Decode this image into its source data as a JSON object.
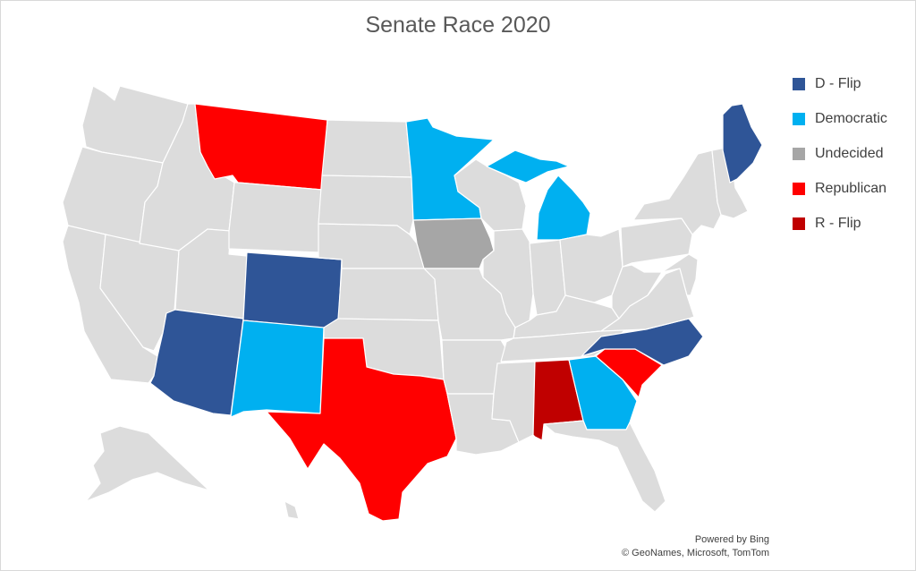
{
  "title": "Senate Race 2020",
  "legend": [
    {
      "label": "D - Flip",
      "color": "#2f5597"
    },
    {
      "label": "Democratic",
      "color": "#00b0f0"
    },
    {
      "label": "Undecided",
      "color": "#a6a6a6"
    },
    {
      "label": "Republican",
      "color": "#ff0000"
    },
    {
      "label": "R - Flip",
      "color": "#c00000"
    }
  ],
  "base_color": "#dcdcdc",
  "states": [
    {
      "name": "Washington",
      "category": "none"
    },
    {
      "name": "Oregon",
      "category": "none"
    },
    {
      "name": "California",
      "category": "none"
    },
    {
      "name": "Nevada",
      "category": "none"
    },
    {
      "name": "Idaho",
      "category": "none"
    },
    {
      "name": "Utah",
      "category": "none"
    },
    {
      "name": "Arizona",
      "category": "D - Flip"
    },
    {
      "name": "Montana",
      "category": "Republican"
    },
    {
      "name": "Wyoming",
      "category": "none"
    },
    {
      "name": "Colorado",
      "category": "D - Flip"
    },
    {
      "name": "New Mexico",
      "category": "Democratic"
    },
    {
      "name": "North Dakota",
      "category": "none"
    },
    {
      "name": "South Dakota",
      "category": "none"
    },
    {
      "name": "Nebraska",
      "category": "none"
    },
    {
      "name": "Kansas",
      "category": "none"
    },
    {
      "name": "Oklahoma",
      "category": "none"
    },
    {
      "name": "Texas",
      "category": "Republican"
    },
    {
      "name": "Minnesota",
      "category": "Democratic"
    },
    {
      "name": "Iowa",
      "category": "Undecided"
    },
    {
      "name": "Missouri",
      "category": "none"
    },
    {
      "name": "Arkansas",
      "category": "none"
    },
    {
      "name": "Louisiana",
      "category": "none"
    },
    {
      "name": "Wisconsin",
      "category": "none"
    },
    {
      "name": "Illinois",
      "category": "none"
    },
    {
      "name": "Michigan",
      "category": "Democratic"
    },
    {
      "name": "Indiana",
      "category": "none"
    },
    {
      "name": "Ohio",
      "category": "none"
    },
    {
      "name": "Kentucky",
      "category": "none"
    },
    {
      "name": "Tennessee",
      "category": "none"
    },
    {
      "name": "Mississippi",
      "category": "none"
    },
    {
      "name": "Alabama",
      "category": "R - Flip"
    },
    {
      "name": "Georgia",
      "category": "Democratic"
    },
    {
      "name": "Florida",
      "category": "none"
    },
    {
      "name": "South Carolina",
      "category": "Republican"
    },
    {
      "name": "North Carolina",
      "category": "D - Flip"
    },
    {
      "name": "Virginia",
      "category": "none"
    },
    {
      "name": "West Virginia",
      "category": "none"
    },
    {
      "name": "Pennsylvania",
      "category": "none"
    },
    {
      "name": "New York",
      "category": "none"
    },
    {
      "name": "New England",
      "category": "none"
    },
    {
      "name": "Maine",
      "category": "D - Flip"
    },
    {
      "name": "Alaska",
      "category": "none"
    },
    {
      "name": "Hawaii",
      "category": "none"
    }
  ],
  "attribution": {
    "line1": "Powered by Bing",
    "line2": "© GeoNames, Microsoft, TomTom"
  }
}
